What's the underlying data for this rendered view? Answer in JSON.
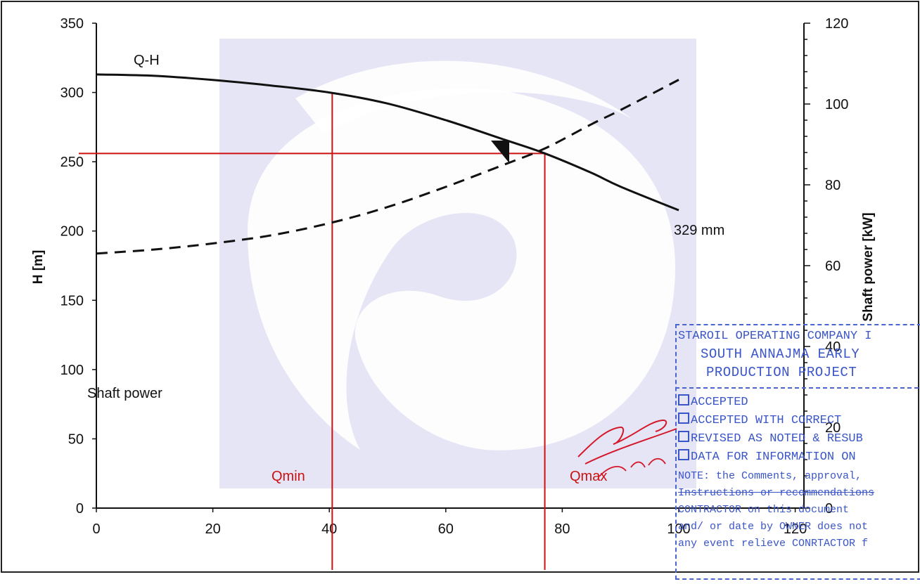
{
  "chart_data": {
    "type": "line",
    "xlim": [
      0,
      120
    ],
    "ylim_left": [
      0,
      350
    ],
    "ylim_right": [
      0,
      120
    ],
    "x_ticks": [
      "0",
      "20",
      "40",
      "60",
      "80",
      "100",
      "120"
    ],
    "y_left_ticks": [
      "0",
      "50",
      "100",
      "150",
      "200",
      "250",
      "300",
      "350"
    ],
    "y_right_ticks": [
      "0",
      "20",
      "40",
      "60",
      "80",
      "100",
      "120"
    ],
    "ylabel_left": "H [m]",
    "ylabel_right": "Shaft power [kW]",
    "series": [
      {
        "name": "Q-H",
        "axis": "left",
        "style": "solid",
        "x": [
          0,
          10,
          20,
          30,
          40,
          50,
          60,
          70,
          77,
          85,
          90,
          100
        ],
        "y": [
          313,
          312,
          309,
          305,
          300,
          292,
          280,
          266,
          256,
          242,
          232,
          215
        ]
      },
      {
        "name": "Shaft power",
        "axis": "right",
        "style": "dashed",
        "x": [
          0,
          10,
          20,
          30,
          40,
          50,
          60,
          70,
          77,
          85,
          90,
          100
        ],
        "y": [
          63,
          64,
          65.5,
          67.5,
          70.5,
          74.5,
          79.5,
          85,
          89,
          95,
          98.5,
          106
        ]
      }
    ],
    "reference_lines": [
      {
        "label": "Qmin",
        "orientation": "vertical",
        "x": 40.5,
        "color": "#cc1111"
      },
      {
        "label": "Qmax",
        "orientation": "vertical",
        "x": 77,
        "color": "#cc1111"
      },
      {
        "label": "",
        "orientation": "horizontal",
        "y": 256,
        "color": "#cc1111"
      }
    ],
    "annotations": {
      "curve_label_qh": "Q-H",
      "curve_label_power": "Shaft power",
      "impeller": "\u001f329 mm"
    },
    "grid": false
  },
  "stamp": {
    "company": "STAROIL OPERATING COMPANY I",
    "project_line1": "SOUTH ANNAJMA EARLY",
    "project_line2": "PRODUCTION PROJECT",
    "opt_accepted": "ACCEPTED",
    "opt_accepted_corr": "ACCEPTED WITH CORRECT",
    "opt_revised": "REVISED AS NOTED & RESUB",
    "opt_info": "DATA FOR INFORMATION ON",
    "note1": "NOTE: the Comments, approval,",
    "note2": "Instructions or recommendations",
    "note3": "CONTRACTOR on this document",
    "note4": "and/ or date by OWNER does not",
    "note5": "any event relieve CONRTACTOR f"
  },
  "colors": {
    "curve": "#111111",
    "reference": "#cc1111",
    "stamp": "#3a55c8",
    "watermark": "#e6e5f5"
  }
}
